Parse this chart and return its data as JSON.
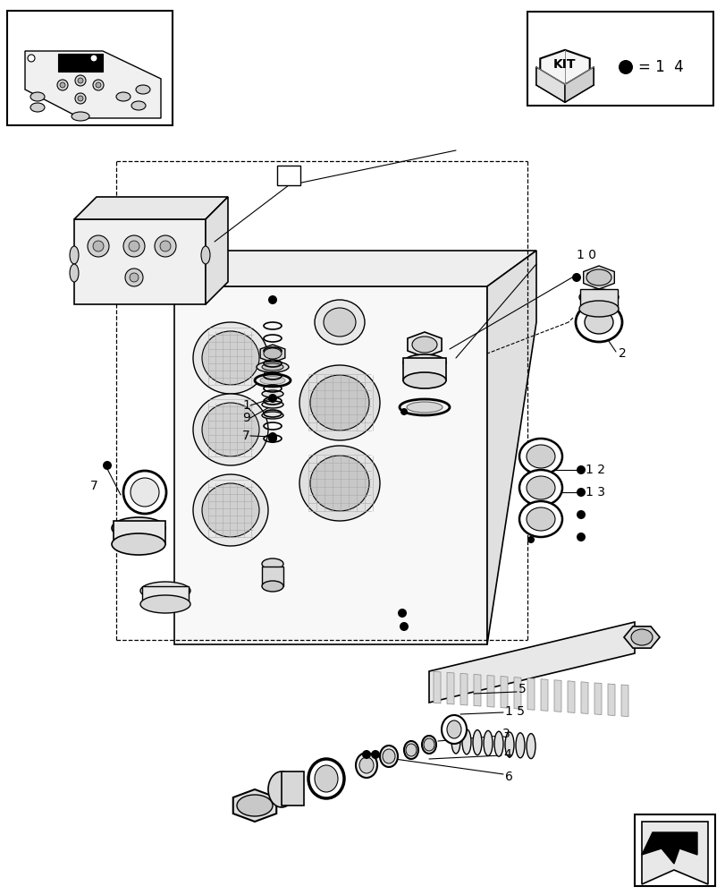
{
  "fig_width": 8.12,
  "fig_height": 10.0,
  "bg": "#ffffff",
  "lc": "#000000",
  "gray": "#888888",
  "lgray": "#cccccc",
  "dgray": "#555555"
}
